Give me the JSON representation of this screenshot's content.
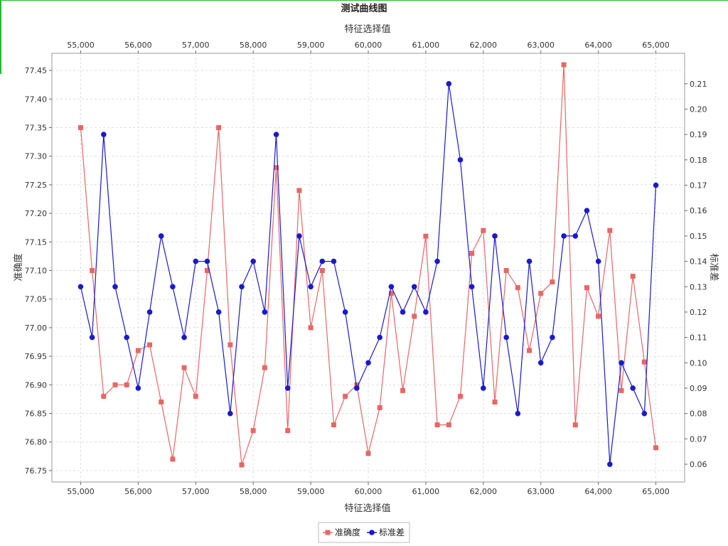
{
  "chart_data": {
    "type": "line",
    "title": "测试曲线图",
    "xlabel": "特征选择值",
    "x2label": "特征选择值",
    "ylabel": "准确度",
    "y2label": "标准差",
    "xlim": [
      54500,
      65500
    ],
    "xticks": [
      55000,
      56000,
      57000,
      58000,
      59000,
      60000,
      61000,
      62000,
      63000,
      64000,
      65000
    ],
    "xtick_labels": [
      "55,000",
      "56,000",
      "57,000",
      "58,000",
      "59,000",
      "60,000",
      "61,000",
      "62,000",
      "63,000",
      "64,000",
      "65,000"
    ],
    "x2tick_labels": [
      "55,000",
      "56,000",
      "57,000",
      "58,000",
      "59,000",
      "60,000",
      "61,000",
      "62,000",
      "63,000",
      "64,000",
      "65,000"
    ],
    "ylim": [
      76.73,
      77.48
    ],
    "yticks": [
      76.75,
      76.8,
      76.85,
      76.9,
      76.95,
      77.0,
      77.05,
      77.1,
      77.15,
      77.2,
      77.25,
      77.3,
      77.35,
      77.4,
      77.45
    ],
    "ytick_labels": [
      "76.75",
      "76.80",
      "76.85",
      "76.90",
      "76.95",
      "77.00",
      "77.05",
      "77.10",
      "77.15",
      "77.20",
      "77.25",
      "77.30",
      "77.35",
      "77.40",
      "77.45"
    ],
    "y2lim": [
      0.053,
      0.222
    ],
    "y2ticks": [
      0.06,
      0.07,
      0.08,
      0.09,
      0.1,
      0.11,
      0.12,
      0.13,
      0.14,
      0.15,
      0.16,
      0.17,
      0.18,
      0.19,
      0.2,
      0.21
    ],
    "y2tick_labels": [
      "0.06",
      "0.07",
      "0.08",
      "0.09",
      "0.10",
      "0.11",
      "0.12",
      "0.13",
      "0.14",
      "0.15",
      "0.16",
      "0.17",
      "0.18",
      "0.19",
      "0.20",
      "0.21"
    ],
    "grid": true,
    "legend_position": "bottom-center",
    "x": [
      55000,
      55200,
      55400,
      55600,
      55800,
      56000,
      56200,
      56400,
      56600,
      56800,
      57000,
      57200,
      57400,
      57600,
      57800,
      58000,
      58200,
      58400,
      58600,
      58800,
      59000,
      59200,
      59400,
      59600,
      59800,
      60000,
      60200,
      60400,
      60600,
      60800,
      61000,
      61200,
      61400,
      61600,
      61800,
      62000,
      62200,
      62400,
      62600,
      62800,
      63000,
      63200,
      63400,
      63600,
      63800,
      64000,
      64200,
      64400,
      64600,
      64800,
      65000
    ],
    "series": [
      {
        "name": "准确度",
        "axis": "left",
        "color": "#e86666",
        "marker": "square",
        "values": [
          77.35,
          77.1,
          76.88,
          76.9,
          76.9,
          76.96,
          76.97,
          76.87,
          76.77,
          76.93,
          76.88,
          77.1,
          77.35,
          76.97,
          76.76,
          76.82,
          76.93,
          77.28,
          76.82,
          77.24,
          77.0,
          77.1,
          76.83,
          76.88,
          76.9,
          76.78,
          76.86,
          77.06,
          76.89,
          77.02,
          77.16,
          76.83,
          76.83,
          76.88,
          77.13,
          77.17,
          76.87,
          77.1,
          77.07,
          76.96,
          77.06,
          77.08,
          77.46,
          76.83,
          77.07,
          77.02,
          77.17,
          76.89,
          77.09,
          76.94,
          76.79
        ]
      },
      {
        "name": "标准差",
        "axis": "right",
        "color": "#1a1acc",
        "marker": "circle",
        "values": [
          0.13,
          0.11,
          0.19,
          0.13,
          0.11,
          0.09,
          0.12,
          0.15,
          0.13,
          0.11,
          0.14,
          0.14,
          0.12,
          0.08,
          0.13,
          0.14,
          0.12,
          0.19,
          0.09,
          0.15,
          0.13,
          0.14,
          0.14,
          0.12,
          0.09,
          0.1,
          0.11,
          0.13,
          0.12,
          0.13,
          0.12,
          0.14,
          0.21,
          0.18,
          0.13,
          0.09,
          0.15,
          0.11,
          0.08,
          0.14,
          0.1,
          0.11,
          0.15,
          0.15,
          0.16,
          0.14,
          0.06,
          0.1,
          0.09,
          0.08,
          0.17
        ]
      }
    ]
  }
}
